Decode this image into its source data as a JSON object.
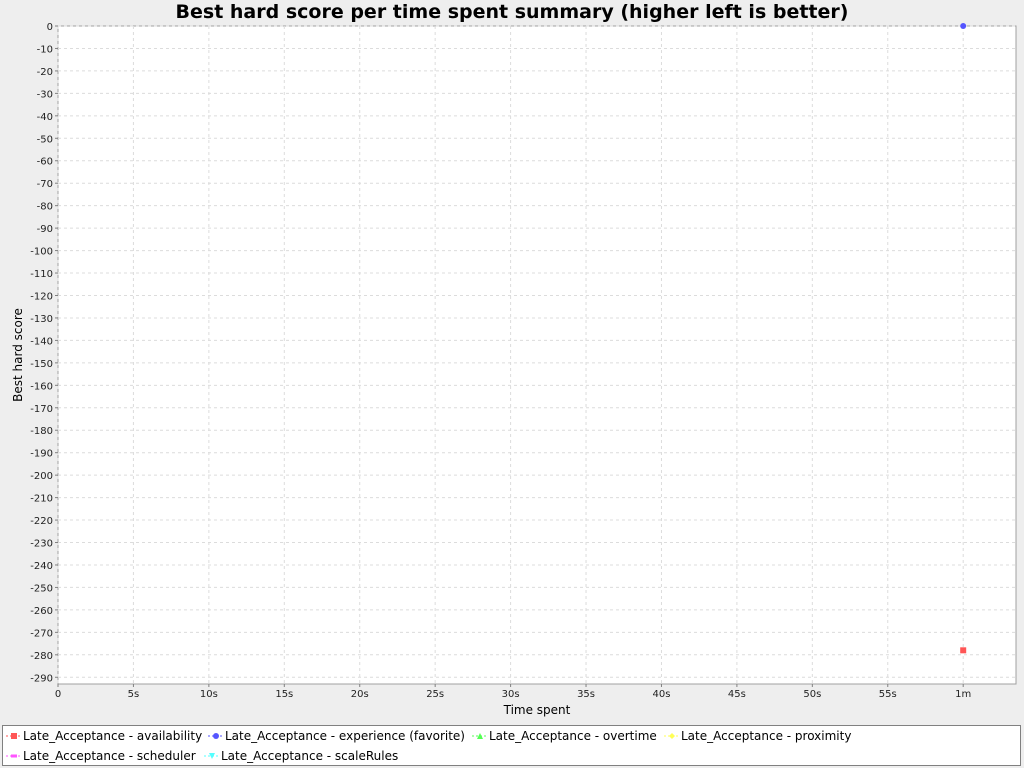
{
  "chart_data": {
    "type": "scatter",
    "title": "Best hard score per time spent summary (higher left is better)",
    "xlabel": "Time spent",
    "ylabel": "Best hard score",
    "xlim": [
      0,
      63.5
    ],
    "ylim": [
      -293,
      0
    ],
    "x_ticks": [
      {
        "value": 0,
        "label": "0"
      },
      {
        "value": 5,
        "label": "5s"
      },
      {
        "value": 10,
        "label": "10s"
      },
      {
        "value": 15,
        "label": "15s"
      },
      {
        "value": 20,
        "label": "20s"
      },
      {
        "value": 25,
        "label": "25s"
      },
      {
        "value": 30,
        "label": "30s"
      },
      {
        "value": 35,
        "label": "35s"
      },
      {
        "value": 40,
        "label": "40s"
      },
      {
        "value": 45,
        "label": "45s"
      },
      {
        "value": 50,
        "label": "50s"
      },
      {
        "value": 55,
        "label": "55s"
      },
      {
        "value": 60,
        "label": "1m"
      }
    ],
    "y_ticks": [
      0,
      -10,
      -20,
      -30,
      -40,
      -50,
      -60,
      -70,
      -80,
      -90,
      -100,
      -110,
      -120,
      -130,
      -140,
      -150,
      -160,
      -170,
      -180,
      -190,
      -200,
      -210,
      -220,
      -230,
      -240,
      -250,
      -260,
      -270,
      -280,
      -290
    ],
    "grid": true,
    "legend_position": "bottom",
    "series": [
      {
        "name": "Late_Acceptance - availability",
        "color": "#ff5555",
        "marker": "square",
        "points": [
          {
            "x": 60,
            "y": -278
          }
        ]
      },
      {
        "name": "Late_Acceptance - experience (favorite)",
        "color": "#5555ff",
        "marker": "circle",
        "points": [
          {
            "x": 60,
            "y": 0
          }
        ]
      },
      {
        "name": "Late_Acceptance - overtime",
        "color": "#55ff55",
        "marker": "triangle-up",
        "points": []
      },
      {
        "name": "Late_Acceptance - proximity",
        "color": "#ffff55",
        "marker": "diamond",
        "points": []
      },
      {
        "name": "Late_Acceptance - scheduler",
        "color": "#ff55ff",
        "marker": "rect-h",
        "points": []
      },
      {
        "name": "Late_Acceptance - scaleRules",
        "color": "#55ffff",
        "marker": "triangle-down",
        "points": []
      }
    ]
  }
}
